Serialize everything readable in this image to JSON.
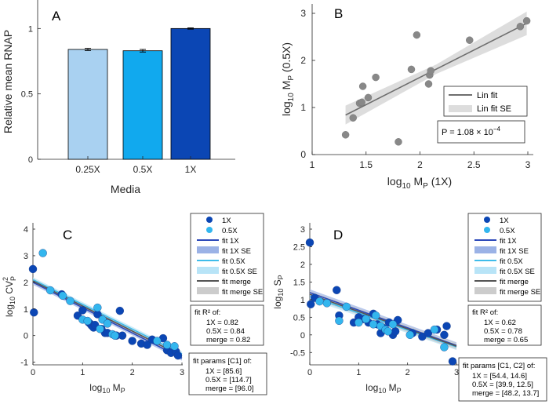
{
  "chart_data": [
    {
      "id": "A",
      "panel_label": "A",
      "type": "bar",
      "categories": [
        "0.25X",
        "0.5X",
        "1X"
      ],
      "values": [
        0.84,
        0.83,
        1.0
      ],
      "errors": [
        0.008,
        0.01,
        0.005
      ],
      "colors": [
        "#a9d1f1",
        "#11a9ee",
        "#0b46b4"
      ],
      "xlabel": "Media",
      "ylabel": "Relative mean RNAP",
      "ylim": [
        0,
        1.2
      ],
      "yticks": [
        0,
        0.5,
        1
      ],
      "ytick_labels": [
        "0",
        "0.5",
        "1"
      ]
    },
    {
      "id": "B",
      "panel_label": "B",
      "type": "scatter",
      "xlabel": "log10 MP (1X)",
      "ylabel": "log10 MP (0.5X)",
      "xlim": [
        1,
        3
      ],
      "ylim": [
        0,
        3.2
      ],
      "xticks": [
        1,
        1.5,
        2,
        2.5,
        3
      ],
      "xtick_labels": [
        "1",
        "1.5",
        "2",
        "2.5",
        "3"
      ],
      "yticks": [
        0,
        1,
        2,
        3
      ],
      "ytick_labels": [
        "0",
        "1",
        "2",
        "3"
      ],
      "points_x": [
        1.31,
        1.38,
        1.44,
        1.46,
        1.47,
        1.52,
        1.59,
        1.8,
        1.92,
        1.97,
        2.08,
        2.09,
        2.1,
        2.46,
        2.93,
        2.99
      ],
      "points_y": [
        0.42,
        0.78,
        1.09,
        1.11,
        1.45,
        1.21,
        1.64,
        0.27,
        1.81,
        2.54,
        1.5,
        1.69,
        1.78,
        2.43,
        2.72,
        2.84
      ],
      "fit": {
        "slope": 1.16,
        "intercept": -0.68,
        "x_range": [
          1.31,
          2.99
        ],
        "se": [
          0.2,
          0.1,
          0.25
        ]
      },
      "legend": [
        "Lin fit",
        "Lin fit SE"
      ],
      "pvalue_text": "P = 1.08 × 10",
      "pvalue_exp": "−4",
      "point_color": "#888888",
      "fit_color": "#6e6e6e"
    },
    {
      "id": "C",
      "panel_label": "C",
      "type": "scatter",
      "xlabel": "log10 MP",
      "ylabel": "log10 CV2P",
      "xlim": [
        0,
        3
      ],
      "ylim": [
        -1.1,
        4
      ],
      "xticks": [
        0,
        1,
        2,
        3
      ],
      "xtick_labels": [
        "0",
        "1",
        "2",
        "3"
      ],
      "yticks": [
        -1,
        0,
        1,
        2,
        3,
        4
      ],
      "ytick_labels": [
        "-1",
        "0",
        "1",
        "2",
        "3",
        "4"
      ],
      "series": [
        {
          "name": "1X",
          "color": "#0b46b4",
          "x": [
            0.0,
            0.02,
            0.58,
            0.9,
            1.0,
            1.12,
            1.15,
            1.18,
            1.22,
            1.25,
            1.3,
            1.38,
            1.45,
            1.5,
            1.68,
            1.75,
            1.8,
            2.0,
            2.18,
            2.3,
            2.4,
            2.62,
            2.7,
            2.78,
            2.88,
            2.92
          ],
          "y": [
            2.5,
            0.87,
            1.55,
            0.75,
            0.95,
            0.5,
            0.45,
            0.38,
            0.3,
            0.4,
            0.8,
            0.25,
            0.1,
            0.1,
            0.0,
            0.93,
            0.0,
            -0.2,
            -0.3,
            -0.35,
            -0.15,
            -0.1,
            -0.55,
            -0.65,
            -0.6,
            -0.75
          ]
        },
        {
          "name": "0.5X",
          "color": "#33b6ee",
          "x": [
            0.2,
            0.35,
            0.6,
            0.75,
            1.0,
            1.1,
            1.3,
            1.35,
            1.4,
            1.5,
            1.6,
            1.65,
            2.5,
            2.7,
            2.85
          ],
          "y": [
            3.1,
            1.7,
            1.5,
            1.3,
            0.6,
            0.55,
            1.05,
            0.25,
            0.6,
            0.45,
            0.05,
            0.0,
            -0.2,
            -0.35,
            -0.4
          ]
        }
      ],
      "fits": [
        {
          "name": "fit 1X",
          "color": "#2c49b9",
          "se_color": "#9bb2e6",
          "intercept": 2.0,
          "slope": -0.95
        },
        {
          "name": "fit 0.5X",
          "color": "#3fbcea",
          "se_color": "#b8e4f7",
          "intercept": 2.1,
          "slope": -0.93
        },
        {
          "name": "fit merge",
          "color": "#555555",
          "se_color": "#cccccc",
          "intercept": 2.05,
          "slope": -0.94
        }
      ],
      "legend": [
        "1X",
        "0.5X",
        "fit 1X",
        "fit 1X SE",
        "fit 0.5X",
        "fit 0.5X SE",
        "fit merge",
        "fit merge SE"
      ],
      "r2_box": {
        "title": "fit R² of:",
        "lines": [
          "1X = 0.82",
          "0.5X = 0.84",
          "merge = 0.82"
        ]
      },
      "params_box": {
        "title": "fit params [C1] of:",
        "lines": [
          "1X = [85.6]",
          "0.5X = [114.7]",
          "merge = [96.0]"
        ]
      }
    },
    {
      "id": "D",
      "panel_label": "D",
      "type": "scatter",
      "xlabel": "log10 MP",
      "ylabel": "log10 SP",
      "xlim": [
        0,
        3
      ],
      "ylim": [
        -0.85,
        3
      ],
      "xticks": [
        0,
        1,
        2,
        3
      ],
      "xtick_labels": [
        "0",
        "1",
        "2",
        "3"
      ],
      "yticks": [
        -0.5,
        0,
        0.5,
        1,
        1.5,
        2,
        2.5,
        3
      ],
      "ytick_labels": [
        "-0.5",
        "0",
        "0.5",
        "1",
        "1.5",
        "2",
        "2.5",
        "3"
      ],
      "series": [
        {
          "name": "1X",
          "color": "#0b46b4",
          "x": [
            0.0,
            0.02,
            0.1,
            0.55,
            0.6,
            0.9,
            1.0,
            1.1,
            1.2,
            1.3,
            1.38,
            1.45,
            1.5,
            1.62,
            1.7,
            1.75,
            1.8,
            2.1,
            2.3,
            2.42,
            2.6,
            2.75,
            2.8,
            2.92
          ],
          "y": [
            2.62,
            0.87,
            1.05,
            1.27,
            0.55,
            0.35,
            0.5,
            0.45,
            0.35,
            0.6,
            0.3,
            0.05,
            0.2,
            0.35,
            0.0,
            0.1,
            0.42,
            0.05,
            -0.05,
            0.05,
            0.15,
            0.0,
            0.25,
            -0.75
          ]
        },
        {
          "name": "0.5X",
          "color": "#33b6ee",
          "x": [
            0.2,
            0.35,
            0.6,
            0.75,
            1.0,
            1.15,
            1.3,
            1.35,
            1.45,
            1.55,
            1.6,
            1.7,
            2.05,
            2.55,
            2.75
          ],
          "y": [
            0.95,
            0.9,
            0.4,
            0.8,
            0.35,
            0.45,
            0.3,
            0.55,
            0.25,
            0.15,
            0.1,
            0.3,
            0.0,
            0.15,
            -0.35
          ]
        }
      ],
      "fits": [
        {
          "name": "fit 1X",
          "color": "#2c49b9",
          "se_color": "#9bb2e6",
          "intercept": 1.2,
          "slope": -0.5
        },
        {
          "name": "fit 0.5X",
          "color": "#3fbcea",
          "se_color": "#b8e4f7",
          "intercept": 1.1,
          "slope": -0.48
        },
        {
          "name": "fit merge",
          "color": "#555555",
          "se_color": "#cccccc",
          "intercept": 1.15,
          "slope": -0.49
        }
      ],
      "legend": [
        "1X",
        "0.5X",
        "fit 1X",
        "fit 1X SE",
        "fit 0.5X",
        "fit 0.5X SE",
        "fit merge",
        "fit merge SE"
      ],
      "r2_box": {
        "title": "fit R² of:",
        "lines": [
          "1X = 0.62",
          "0.5X = 0.78",
          "merge = 0.65"
        ]
      },
      "params_box": {
        "title": "fit params [C1, C2] of:",
        "lines": [
          "1X = [54.4, 14.6]",
          "0.5X = [39.9, 12.5]",
          "merge = [48.2, 13.7]"
        ]
      }
    }
  ]
}
